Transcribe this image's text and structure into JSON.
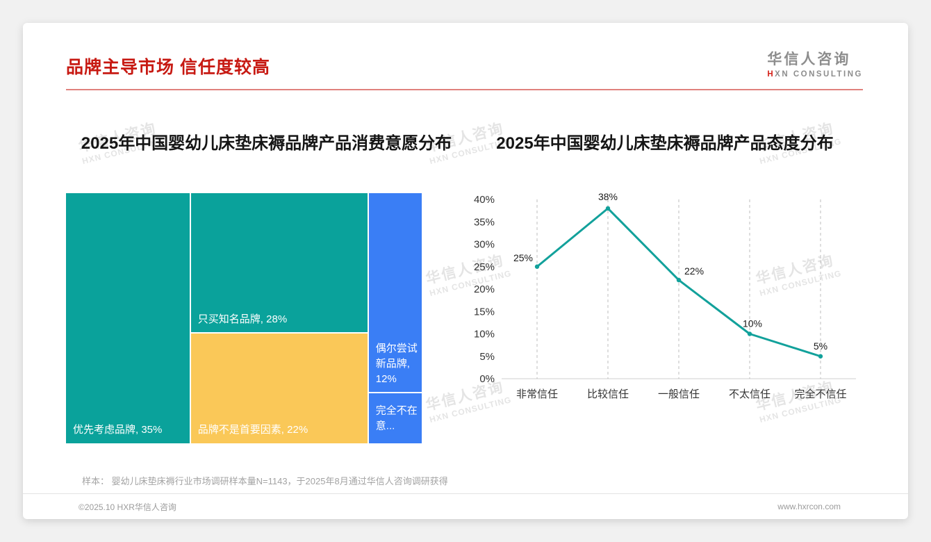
{
  "page": {
    "title": "品牌主导市场 信任度较高",
    "logo": {
      "cn": "华信人咨询",
      "en_accent": "H",
      "en_rest": "XN CONSULTING"
    },
    "watermark": {
      "line1": "华信人咨询",
      "line2": "HXN CONSULTING"
    },
    "footnote": "样本： 婴幼儿床垫床褥行业市场调研样本量N=1143，于2025年8月通过华信人咨询调研获得",
    "footer": {
      "copyright": "©2025.10 HXR华信人咨询",
      "website": "www.hxrcon.com"
    }
  },
  "colors": {
    "accent_red": "#c71912",
    "teal": "#0aa29b",
    "yellow": "#fac858",
    "blue": "#3a7ef5"
  },
  "chart_data": [
    {
      "type": "treemap",
      "title": "2025年中国婴幼儿床垫床褥品牌产品消费意愿分布",
      "items": [
        {
          "label": "优先考虑品牌",
          "value": 35,
          "display": "优先考虑品牌, 35%",
          "color": "#0aa29b"
        },
        {
          "label": "只买知名品牌",
          "value": 28,
          "display": "只买知名品牌, 28%",
          "color": "#0aa29b"
        },
        {
          "label": "品牌不是首要因素",
          "value": 22,
          "display": "品牌不是首要因素, 22%",
          "color": "#fac858"
        },
        {
          "label": "偶尔尝试新品牌",
          "value": 12,
          "display": "偶尔尝试新品牌, 12%",
          "color": "#3a7ef5"
        },
        {
          "label": "完全不在意",
          "value": 3,
          "display": "完全不在意...",
          "color": "#3a7ef5"
        }
      ]
    },
    {
      "type": "line",
      "title": "2025年中国婴幼儿床垫床褥品牌产品态度分布",
      "categories": [
        "非常信任",
        "比较信任",
        "一般信任",
        "不太信任",
        "完全不信任"
      ],
      "values": [
        25,
        38,
        22,
        10,
        5
      ],
      "labels": [
        "25%",
        "38%",
        "22%",
        "10%",
        "5%"
      ],
      "ylim": [
        0,
        40
      ],
      "ytick_step": 5,
      "ytick_suffix": "%",
      "line_color": "#12a19b",
      "grid": "vertical-dashed",
      "legend": "none"
    }
  ]
}
